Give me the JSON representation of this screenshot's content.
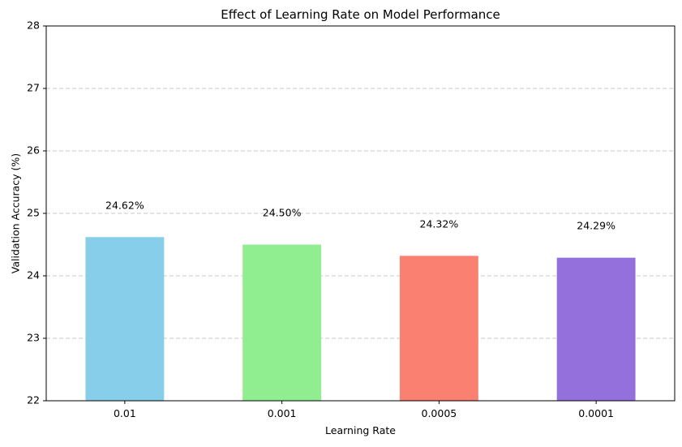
{
  "chart_data": {
    "type": "bar",
    "title": "Effect of Learning Rate on Model Performance",
    "xlabel": "Learning Rate",
    "ylabel": "Validation Accuracy (%)",
    "categories": [
      "0.01",
      "0.001",
      "0.0005",
      "0.0001"
    ],
    "values": [
      24.62,
      24.5,
      24.32,
      24.29
    ],
    "data_labels": [
      "24.62%",
      "24.50%",
      "24.32%",
      "24.29%"
    ],
    "colors": [
      "#87ceeb",
      "#90ee90",
      "#fa8072",
      "#9370db"
    ],
    "ylim": [
      22,
      28
    ],
    "yticks": [
      22,
      23,
      24,
      25,
      26,
      27,
      28
    ],
    "grid": {
      "y": true,
      "style": "dashed",
      "color": "#c8c8c8"
    },
    "legend": null
  }
}
